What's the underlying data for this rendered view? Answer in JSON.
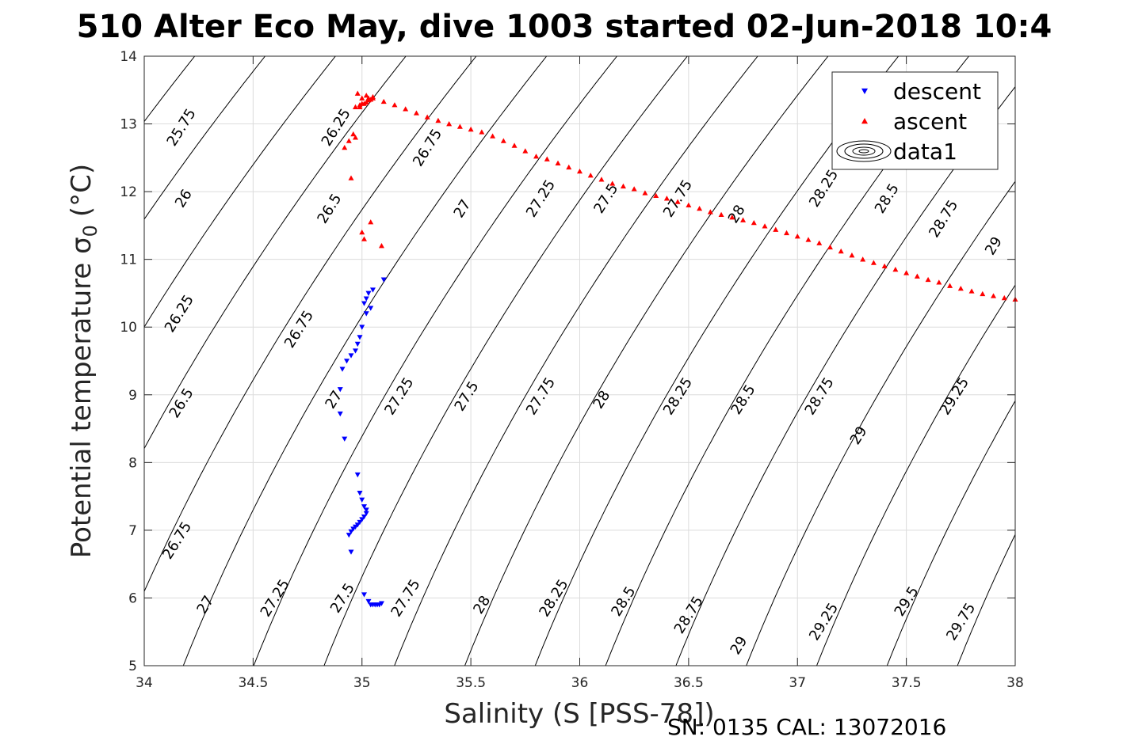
{
  "chart_data": {
    "type": "scatter",
    "title": "510 Alter Eco May, dive 1003 started 02-Jun-2018 10:4",
    "xlabel": "Salinity (S [PSS-78])",
    "ylabel": "Potential temperature σ",
    "ylabel_sub": "0",
    "ylabel_unit": "(°C)",
    "xlim": [
      34,
      38
    ],
    "ylim": [
      5,
      14
    ],
    "xticks": [
      34,
      34.5,
      35,
      35.5,
      36,
      36.5,
      37,
      37.5,
      38
    ],
    "xtick_labels": [
      "34",
      "34.5",
      "35",
      "35.5",
      "36",
      "36.5",
      "37",
      "37.5",
      "38"
    ],
    "yticks": [
      5,
      6,
      7,
      8,
      9,
      10,
      11,
      12,
      13,
      14
    ],
    "ytick_labels": [
      "5",
      "6",
      "7",
      "8",
      "9",
      "10",
      "11",
      "12",
      "13",
      "14"
    ],
    "grid": true,
    "legend_position": "top-right",
    "footer": "SN: 0135  CAL: 13072016",
    "contour_levels": [
      25.75,
      26,
      26.25,
      26.5,
      26.75,
      27,
      27.25,
      27.5,
      27.75,
      28,
      28.25,
      28.5,
      28.75,
      29,
      29.25,
      29.5,
      29.75
    ],
    "contour_labels": [
      {
        "text": "25.75",
        "x": 34.17,
        "y": 12.95
      },
      {
        "text": "26.25",
        "x": 34.88,
        "y": 12.95
      },
      {
        "text": "26",
        "x": 34.18,
        "y": 11.9
      },
      {
        "text": "26.5",
        "x": 34.85,
        "y": 11.75
      },
      {
        "text": "26.75",
        "x": 35.3,
        "y": 12.65
      },
      {
        "text": "27",
        "x": 35.46,
        "y": 11.75
      },
      {
        "text": "27.25",
        "x": 35.82,
        "y": 11.9
      },
      {
        "text": "27.5",
        "x": 36.12,
        "y": 11.9
      },
      {
        "text": "27.75",
        "x": 36.45,
        "y": 11.9
      },
      {
        "text": "28",
        "x": 36.72,
        "y": 11.67
      },
      {
        "text": "28.25",
        "x": 37.12,
        "y": 12.05
      },
      {
        "text": "28.5",
        "x": 37.41,
        "y": 11.9
      },
      {
        "text": "28.75",
        "x": 37.67,
        "y": 11.6
      },
      {
        "text": "29",
        "x": 37.9,
        "y": 11.2
      },
      {
        "text": "26.25",
        "x": 34.16,
        "y": 10.2
      },
      {
        "text": "26.75",
        "x": 34.71,
        "y": 9.97
      },
      {
        "text": "26.5",
        "x": 34.17,
        "y": 8.88
      },
      {
        "text": "27",
        "x": 34.87,
        "y": 8.93
      },
      {
        "text": "27.25",
        "x": 35.17,
        "y": 8.98
      },
      {
        "text": "27.5",
        "x": 35.48,
        "y": 8.98
      },
      {
        "text": "27.75",
        "x": 35.82,
        "y": 8.98
      },
      {
        "text": "28",
        "x": 36.1,
        "y": 8.93
      },
      {
        "text": "28.25",
        "x": 36.45,
        "y": 8.98
      },
      {
        "text": "28.5",
        "x": 36.75,
        "y": 8.93
      },
      {
        "text": "28.75",
        "x": 37.1,
        "y": 8.98
      },
      {
        "text": "29",
        "x": 37.28,
        "y": 8.4
      },
      {
        "text": "29.25",
        "x": 37.72,
        "y": 8.98
      },
      {
        "text": "26.75",
        "x": 34.15,
        "y": 6.85
      },
      {
        "text": "27",
        "x": 34.28,
        "y": 5.9
      },
      {
        "text": "27.25",
        "x": 34.6,
        "y": 6.0
      },
      {
        "text": "27.5",
        "x": 34.91,
        "y": 6.0
      },
      {
        "text": "27.75",
        "x": 35.2,
        "y": 6.0
      },
      {
        "text": "28",
        "x": 35.55,
        "y": 5.9
      },
      {
        "text": "28.25",
        "x": 35.88,
        "y": 6.0
      },
      {
        "text": "28.5",
        "x": 36.2,
        "y": 5.95
      },
      {
        "text": "28.75",
        "x": 36.5,
        "y": 5.75
      },
      {
        "text": "29",
        "x": 36.73,
        "y": 5.3
      },
      {
        "text": "29.25",
        "x": 37.12,
        "y": 5.65
      },
      {
        "text": "29.5",
        "x": 37.5,
        "y": 5.95
      },
      {
        "text": "29.75",
        "x": 37.75,
        "y": 5.65
      }
    ],
    "series": [
      {
        "name": "descent",
        "color": "#0000ff",
        "marker": "triangle-down",
        "x": [
          35.1,
          35.05,
          35.03,
          35.02,
          35.01,
          35.02,
          35.04,
          35.0,
          34.99,
          34.98,
          34.97,
          34.95,
          34.93,
          34.91,
          34.9,
          34.9,
          34.92,
          34.98,
          34.99,
          35.0,
          35.01,
          35.02,
          35.02,
          35.01,
          35.0,
          34.99,
          34.98,
          34.97,
          34.96,
          34.95,
          34.94,
          34.95,
          35.01,
          35.03,
          35.04,
          35.05,
          35.06,
          35.07,
          35.08,
          35.09
        ],
        "y": [
          10.7,
          10.55,
          10.5,
          10.42,
          10.35,
          10.2,
          10.28,
          10.0,
          9.85,
          9.75,
          9.65,
          9.58,
          9.5,
          9.38,
          9.08,
          8.72,
          8.35,
          7.82,
          7.55,
          7.45,
          7.35,
          7.3,
          7.25,
          7.2,
          7.16,
          7.12,
          7.08,
          7.05,
          7.02,
          6.98,
          6.93,
          6.68,
          6.05,
          5.95,
          5.9,
          5.9,
          5.9,
          5.9,
          5.9,
          5.92
        ]
      },
      {
        "name": "ascent",
        "color": "#ff0000",
        "marker": "triangle-up",
        "x": [
          35.09,
          35.04,
          35.0,
          35.01,
          34.95,
          34.92,
          34.94,
          34.97,
          34.96,
          34.97,
          34.99,
          35.01,
          35.03,
          35.05,
          35.02,
          35.0,
          34.98,
          34.99,
          35.0,
          35.02,
          35.03,
          35.04,
          35.05,
          35.1,
          35.15,
          35.2,
          35.25,
          35.3,
          35.35,
          35.4,
          35.45,
          35.5,
          35.55,
          35.6,
          35.65,
          35.7,
          35.75,
          35.8,
          35.85,
          35.9,
          35.95,
          36.0,
          36.05,
          36.1,
          36.15,
          36.2,
          36.25,
          36.3,
          36.35,
          36.4,
          36.45,
          36.5,
          36.55,
          36.6,
          36.65,
          36.7,
          36.75,
          36.8,
          36.85,
          36.9,
          36.95,
          37.0,
          37.05,
          37.1,
          37.15,
          37.2,
          37.25,
          37.3,
          37.35,
          37.4,
          37.45,
          37.5,
          37.55,
          37.6,
          37.65,
          37.7,
          37.75,
          37.8,
          37.85,
          37.9,
          37.95,
          38.0
        ],
        "y": [
          11.2,
          11.55,
          11.4,
          11.3,
          12.2,
          12.65,
          12.75,
          12.8,
          12.85,
          13.25,
          13.25,
          13.3,
          13.35,
          13.38,
          13.42,
          13.38,
          13.45,
          13.28,
          13.3,
          13.32,
          13.38,
          13.36,
          13.4,
          13.33,
          13.28,
          13.22,
          13.16,
          13.1,
          13.05,
          13.0,
          12.96,
          12.92,
          12.88,
          12.82,
          12.75,
          12.68,
          12.6,
          12.52,
          12.48,
          12.42,
          12.36,
          12.3,
          12.24,
          12.18,
          12.12,
          12.08,
          12.04,
          11.98,
          11.94,
          11.9,
          11.85,
          11.8,
          11.75,
          11.7,
          11.66,
          11.62,
          11.58,
          11.54,
          11.49,
          11.44,
          11.39,
          11.34,
          11.29,
          11.24,
          11.18,
          11.12,
          11.06,
          11.0,
          10.95,
          10.9,
          10.85,
          10.8,
          10.75,
          10.7,
          10.66,
          10.61,
          10.57,
          10.53,
          10.49,
          10.46,
          10.43,
          10.41
        ]
      },
      {
        "name": "data1",
        "color": "#000000",
        "marker": "contour"
      }
    ]
  }
}
